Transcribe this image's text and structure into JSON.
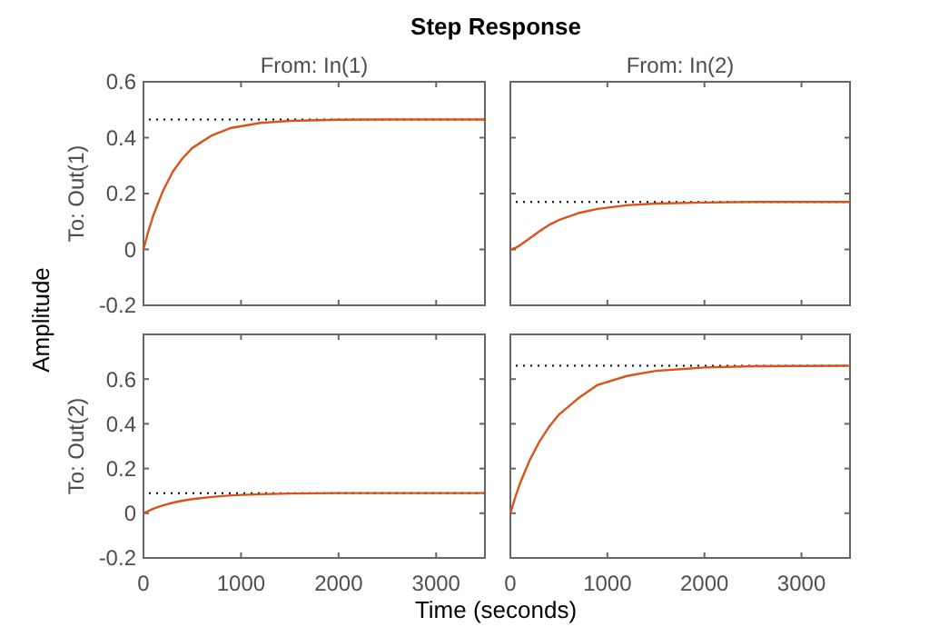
{
  "chart_data": [
    {
      "type": "line",
      "title": "Step Response",
      "subtitle": "From: In(1)",
      "ylabel": "To: Out(1)",
      "annotations": [
        "Amplitude"
      ],
      "xlim": [
        0,
        3500
      ],
      "xticks": [
        0,
        1000,
        2000,
        3000
      ],
      "ylim": [
        -0.2,
        0.6
      ],
      "yticks": [
        -0.2,
        0,
        0.2,
        0.4,
        0.6
      ],
      "tick_labels": "y",
      "x": [
        0,
        50,
        100,
        200,
        300,
        400,
        500,
        700,
        900,
        1200,
        1500,
        2000,
        2500,
        3000,
        3500
      ],
      "series": [
        {
          "color": "#d95319",
          "values": [
            0,
            0.065,
            0.121,
            0.21,
            0.278,
            0.326,
            0.363,
            0.408,
            0.435,
            0.453,
            0.46,
            0.464,
            0.465,
            0.465,
            0.465
          ]
        }
      ],
      "ref_lines": [
        {
          "axis": "y",
          "value": 0.465,
          "color": "#000000",
          "line_style": "dotted"
        }
      ]
    },
    {
      "type": "line",
      "subtitle": "From: In(2)",
      "xlim": [
        0,
        3500
      ],
      "xticks": [
        0,
        1000,
        2000,
        3000
      ],
      "ylim": [
        -0.2,
        0.6
      ],
      "yticks": [
        -0.2,
        0,
        0.2,
        0.4,
        0.6
      ],
      "tick_labels": false,
      "x": [
        0,
        50,
        100,
        200,
        300,
        400,
        500,
        700,
        900,
        1200,
        1500,
        2000,
        2500,
        3000,
        3500
      ],
      "series": [
        {
          "color": "#d95319",
          "values": [
            0,
            0.005,
            0.015,
            0.04,
            0.065,
            0.088,
            0.105,
            0.13,
            0.145,
            0.158,
            0.164,
            0.168,
            0.17,
            0.17,
            0.17
          ]
        }
      ],
      "ref_lines": [
        {
          "axis": "y",
          "value": 0.17,
          "color": "#000000",
          "line_style": "dotted"
        }
      ]
    },
    {
      "type": "line",
      "ylabel": "To: Out(2)",
      "xlabel": "Time (seconds)",
      "xlim": [
        0,
        3500
      ],
      "xticks": [
        0,
        1000,
        2000,
        3000
      ],
      "ylim": [
        -0.2,
        0.8
      ],
      "yticks": [
        -0.2,
        0,
        0.2,
        0.4,
        0.6
      ],
      "x": [
        0,
        50,
        100,
        200,
        300,
        400,
        500,
        700,
        900,
        1200,
        1500,
        2000,
        2500,
        3000,
        3500
      ],
      "series": [
        {
          "color": "#d95319",
          "values": [
            0,
            0.01,
            0.02,
            0.035,
            0.047,
            0.056,
            0.063,
            0.073,
            0.08,
            0.085,
            0.088,
            0.09,
            0.09,
            0.09,
            0.09
          ]
        }
      ],
      "ref_lines": [
        {
          "axis": "y",
          "value": 0.09,
          "color": "#000000",
          "line_style": "dotted"
        }
      ]
    },
    {
      "type": "line",
      "xlim": [
        0,
        3500
      ],
      "xticks": [
        0,
        1000,
        2000,
        3000
      ],
      "ylim": [
        -0.2,
        0.8
      ],
      "yticks": [
        -0.2,
        0,
        0.2,
        0.4,
        0.6
      ],
      "tick_labels": "x",
      "x": [
        0,
        50,
        100,
        200,
        300,
        400,
        500,
        700,
        900,
        1200,
        1500,
        2000,
        2500,
        3000,
        3500
      ],
      "series": [
        {
          "color": "#d95319",
          "values": [
            0,
            0.071,
            0.134,
            0.238,
            0.321,
            0.387,
            0.441,
            0.514,
            0.574,
            0.614,
            0.637,
            0.652,
            0.658,
            0.659,
            0.66
          ]
        }
      ],
      "ref_lines": [
        {
          "axis": "y",
          "value": 0.66,
          "color": "#000000",
          "line_style": "dotted"
        }
      ]
    }
  ]
}
